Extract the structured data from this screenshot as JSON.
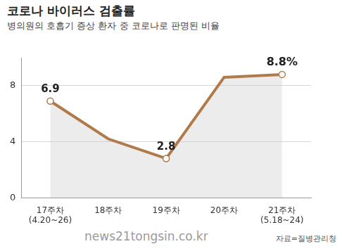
{
  "chart_data": {
    "type": "line",
    "title": "코로나 바이러스 검출률",
    "subtitle": "병의원의 호흡기 증상 환자 중 코로나로 판명된 비율",
    "categories": [
      "17주차\n(4.20~26)",
      "18주차",
      "19주차",
      "20주차",
      "21주차\n(5.18~24)"
    ],
    "values": [
      6.9,
      4.2,
      2.8,
      8.6,
      8.8
    ],
    "value_labels": [
      "6.9",
      null,
      "2.8",
      null,
      "8.8%"
    ],
    "data_labels": true,
    "color": "#b07a4a",
    "marker": "circle",
    "ylim": [
      0,
      10
    ],
    "yticks": [
      0,
      4,
      8
    ],
    "grid": true,
    "source": "자료=질병관리청",
    "watermark": "news21tongsin.co.kr"
  }
}
